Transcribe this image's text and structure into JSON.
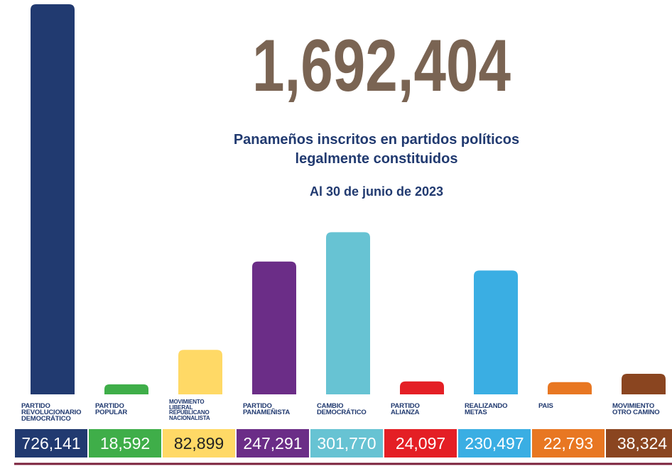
{
  "chart_data": {
    "type": "bar",
    "title": "1,692,404",
    "subtitle": "Panameños inscritos en partidos políticos\nlegalmente constituidos",
    "note": "Al 30 de junio de 2023",
    "categories": [
      "PARTIDO\nREVOLUCIONARIO\nDEMOCRÁTICO",
      "PARTIDO\nPOPULAR",
      "MOVIMIENTO\nLIBERAL\nREPUBLICANO\nNACIONALISTA",
      "PARTIDO\nPANAMEÑISTA",
      "CAMBIO\nDEMOCRÁTICO",
      "PARTIDO\nALIANZA",
      "REALIZANDO\nMETAS",
      "PAIS",
      "MOVIMIENTO\nOTRO CAMINO"
    ],
    "values": [
      726141,
      18592,
      82899,
      247291,
      301770,
      24097,
      230497,
      22793,
      38324
    ],
    "value_labels": [
      "726,141",
      "18,592",
      "82,899",
      "247,291",
      "301,770",
      "24,097",
      "230,497",
      "22,793",
      "38,324"
    ],
    "colors": [
      "#213a70",
      "#3fae49",
      "#ffd966",
      "#6b2d87",
      "#67c3d3",
      "#e41f25",
      "#3aaee3",
      "#e87722",
      "#8a4520"
    ]
  }
}
